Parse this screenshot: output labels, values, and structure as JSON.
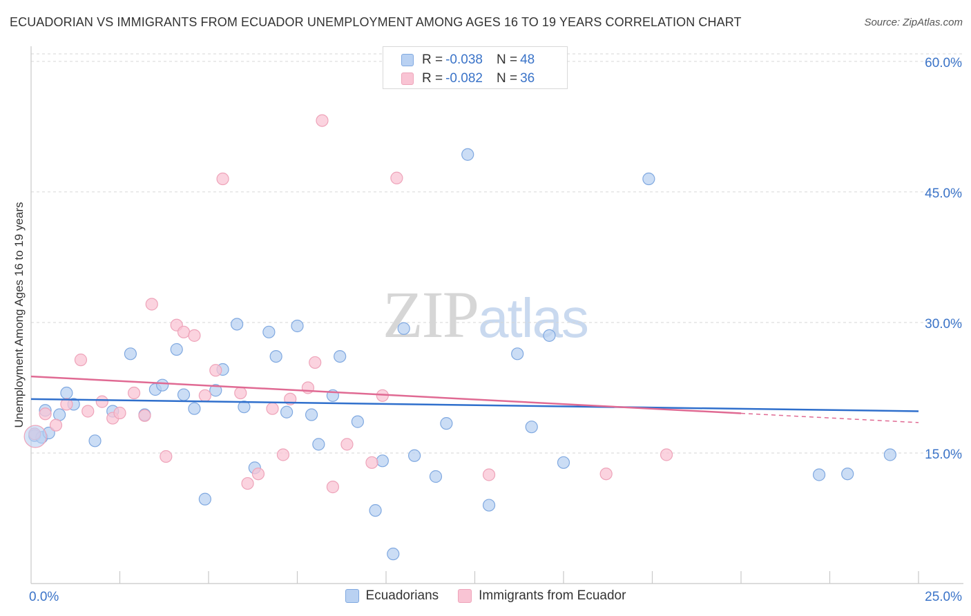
{
  "header": {
    "title": "ECUADORIAN VS IMMIGRANTS FROM ECUADOR UNEMPLOYMENT AMONG AGES 16 TO 19 YEARS CORRELATION CHART",
    "source": "Source: ZipAtlas.com"
  },
  "watermark": {
    "zip": "ZIP",
    "atlas": "atlas"
  },
  "legend": {
    "rows": [
      {
        "r_label": "R =",
        "r_value": "-0.038",
        "n_label": "N =",
        "n_value": "48"
      },
      {
        "r_label": "R =",
        "r_value": "-0.082",
        "n_label": "N =",
        "n_value": "36"
      }
    ],
    "bottom": [
      "Ecuadorians",
      "Immigrants from Ecuador"
    ]
  },
  "colors": {
    "blue_fill": "#b9d1f2",
    "blue_stroke": "#7fa8e0",
    "blue_line": "#2f6fcc",
    "pink_fill": "#f9c4d4",
    "pink_stroke": "#eea3b9",
    "pink_line": "#e06a93",
    "axis_text": "#3a73c8",
    "grid": "#d6d6d6"
  },
  "chart_data": {
    "type": "scatter",
    "title": "ECUADORIAN VS IMMIGRANTS FROM ECUADOR UNEMPLOYMENT AMONG AGES 16 TO 19 YEARS CORRELATION CHART",
    "xlabel": "",
    "ylabel": "Unemployment Among Ages 16 to 19 years",
    "xlim": [
      0,
      25
    ],
    "ylim": [
      0,
      61.5
    ],
    "x_tick_labels": [
      {
        "value": 0,
        "label": "0.0%"
      },
      {
        "value": 25,
        "label": "25.0%"
      }
    ],
    "x_minor_ticks": [
      2.5,
      5,
      7.5,
      10,
      12.5,
      15,
      17.5,
      20,
      22.5,
      25
    ],
    "y_ticks": [
      {
        "value": 15,
        "label": "15.0%"
      },
      {
        "value": 30,
        "label": "30.0%"
      },
      {
        "value": 45,
        "label": "45.0%"
      },
      {
        "value": 60,
        "label": "60.0%"
      }
    ],
    "grid": true,
    "series": [
      {
        "name": "Ecuadorians",
        "color": "blue",
        "r": -0.038,
        "n": 48,
        "trend": {
          "x": [
            0,
            25
          ],
          "y": [
            21.2,
            19.8
          ],
          "dashed_from": null
        },
        "points": [
          [
            0.1,
            17.0
          ],
          [
            0.3,
            16.8
          ],
          [
            0.4,
            19.9
          ],
          [
            0.5,
            17.3
          ],
          [
            0.8,
            19.4
          ],
          [
            1.0,
            21.9
          ],
          [
            1.2,
            20.6
          ],
          [
            1.8,
            16.4
          ],
          [
            2.3,
            19.8
          ],
          [
            2.8,
            26.4
          ],
          [
            3.2,
            19.4
          ],
          [
            3.5,
            22.3
          ],
          [
            3.7,
            22.8
          ],
          [
            4.1,
            26.9
          ],
          [
            4.3,
            21.7
          ],
          [
            4.6,
            20.1
          ],
          [
            4.9,
            9.7
          ],
          [
            5.2,
            22.2
          ],
          [
            5.4,
            24.6
          ],
          [
            5.8,
            29.8
          ],
          [
            6.0,
            20.3
          ],
          [
            6.3,
            13.3
          ],
          [
            6.7,
            28.9
          ],
          [
            6.9,
            26.1
          ],
          [
            7.2,
            19.7
          ],
          [
            7.5,
            29.6
          ],
          [
            7.9,
            19.4
          ],
          [
            8.1,
            16.0
          ],
          [
            8.5,
            21.6
          ],
          [
            8.7,
            26.1
          ],
          [
            9.2,
            18.6
          ],
          [
            9.7,
            8.4
          ],
          [
            9.9,
            14.1
          ],
          [
            10.2,
            3.4
          ],
          [
            10.5,
            29.3
          ],
          [
            10.8,
            14.7
          ],
          [
            11.4,
            12.3
          ],
          [
            11.7,
            18.4
          ],
          [
            12.3,
            49.3
          ],
          [
            12.9,
            9.0
          ],
          [
            13.7,
            26.4
          ],
          [
            14.1,
            18.0
          ],
          [
            14.6,
            28.5
          ],
          [
            15.0,
            13.9
          ],
          [
            17.4,
            46.5
          ],
          [
            22.2,
            12.5
          ],
          [
            23.0,
            12.6
          ],
          [
            24.2,
            14.8
          ]
        ]
      },
      {
        "name": "Immigrants from Ecuador",
        "color": "pink",
        "r": -0.082,
        "n": 36,
        "trend": {
          "x": [
            0,
            25
          ],
          "y": [
            23.8,
            18.5
          ],
          "dashed_from": 20
        },
        "points": [
          [
            0.1,
            17.2
          ],
          [
            0.4,
            19.5
          ],
          [
            0.7,
            18.2
          ],
          [
            1.0,
            20.6
          ],
          [
            1.4,
            25.7
          ],
          [
            1.6,
            19.8
          ],
          [
            2.0,
            20.9
          ],
          [
            2.3,
            19.0
          ],
          [
            2.5,
            19.6
          ],
          [
            2.9,
            21.9
          ],
          [
            3.2,
            19.3
          ],
          [
            3.4,
            32.1
          ],
          [
            3.8,
            14.6
          ],
          [
            4.1,
            29.7
          ],
          [
            4.3,
            28.9
          ],
          [
            4.6,
            28.5
          ],
          [
            4.9,
            21.6
          ],
          [
            5.2,
            24.5
          ],
          [
            5.4,
            46.5
          ],
          [
            5.9,
            21.9
          ],
          [
            6.1,
            11.5
          ],
          [
            6.4,
            12.6
          ],
          [
            6.8,
            20.1
          ],
          [
            7.1,
            14.8
          ],
          [
            7.3,
            21.2
          ],
          [
            7.8,
            22.5
          ],
          [
            8.0,
            25.4
          ],
          [
            8.2,
            53.2
          ],
          [
            8.5,
            11.1
          ],
          [
            8.9,
            16.0
          ],
          [
            9.6,
            13.9
          ],
          [
            9.9,
            21.6
          ],
          [
            10.3,
            46.6
          ],
          [
            12.9,
            12.5
          ],
          [
            16.2,
            12.6
          ],
          [
            17.9,
            14.8
          ]
        ]
      }
    ]
  }
}
